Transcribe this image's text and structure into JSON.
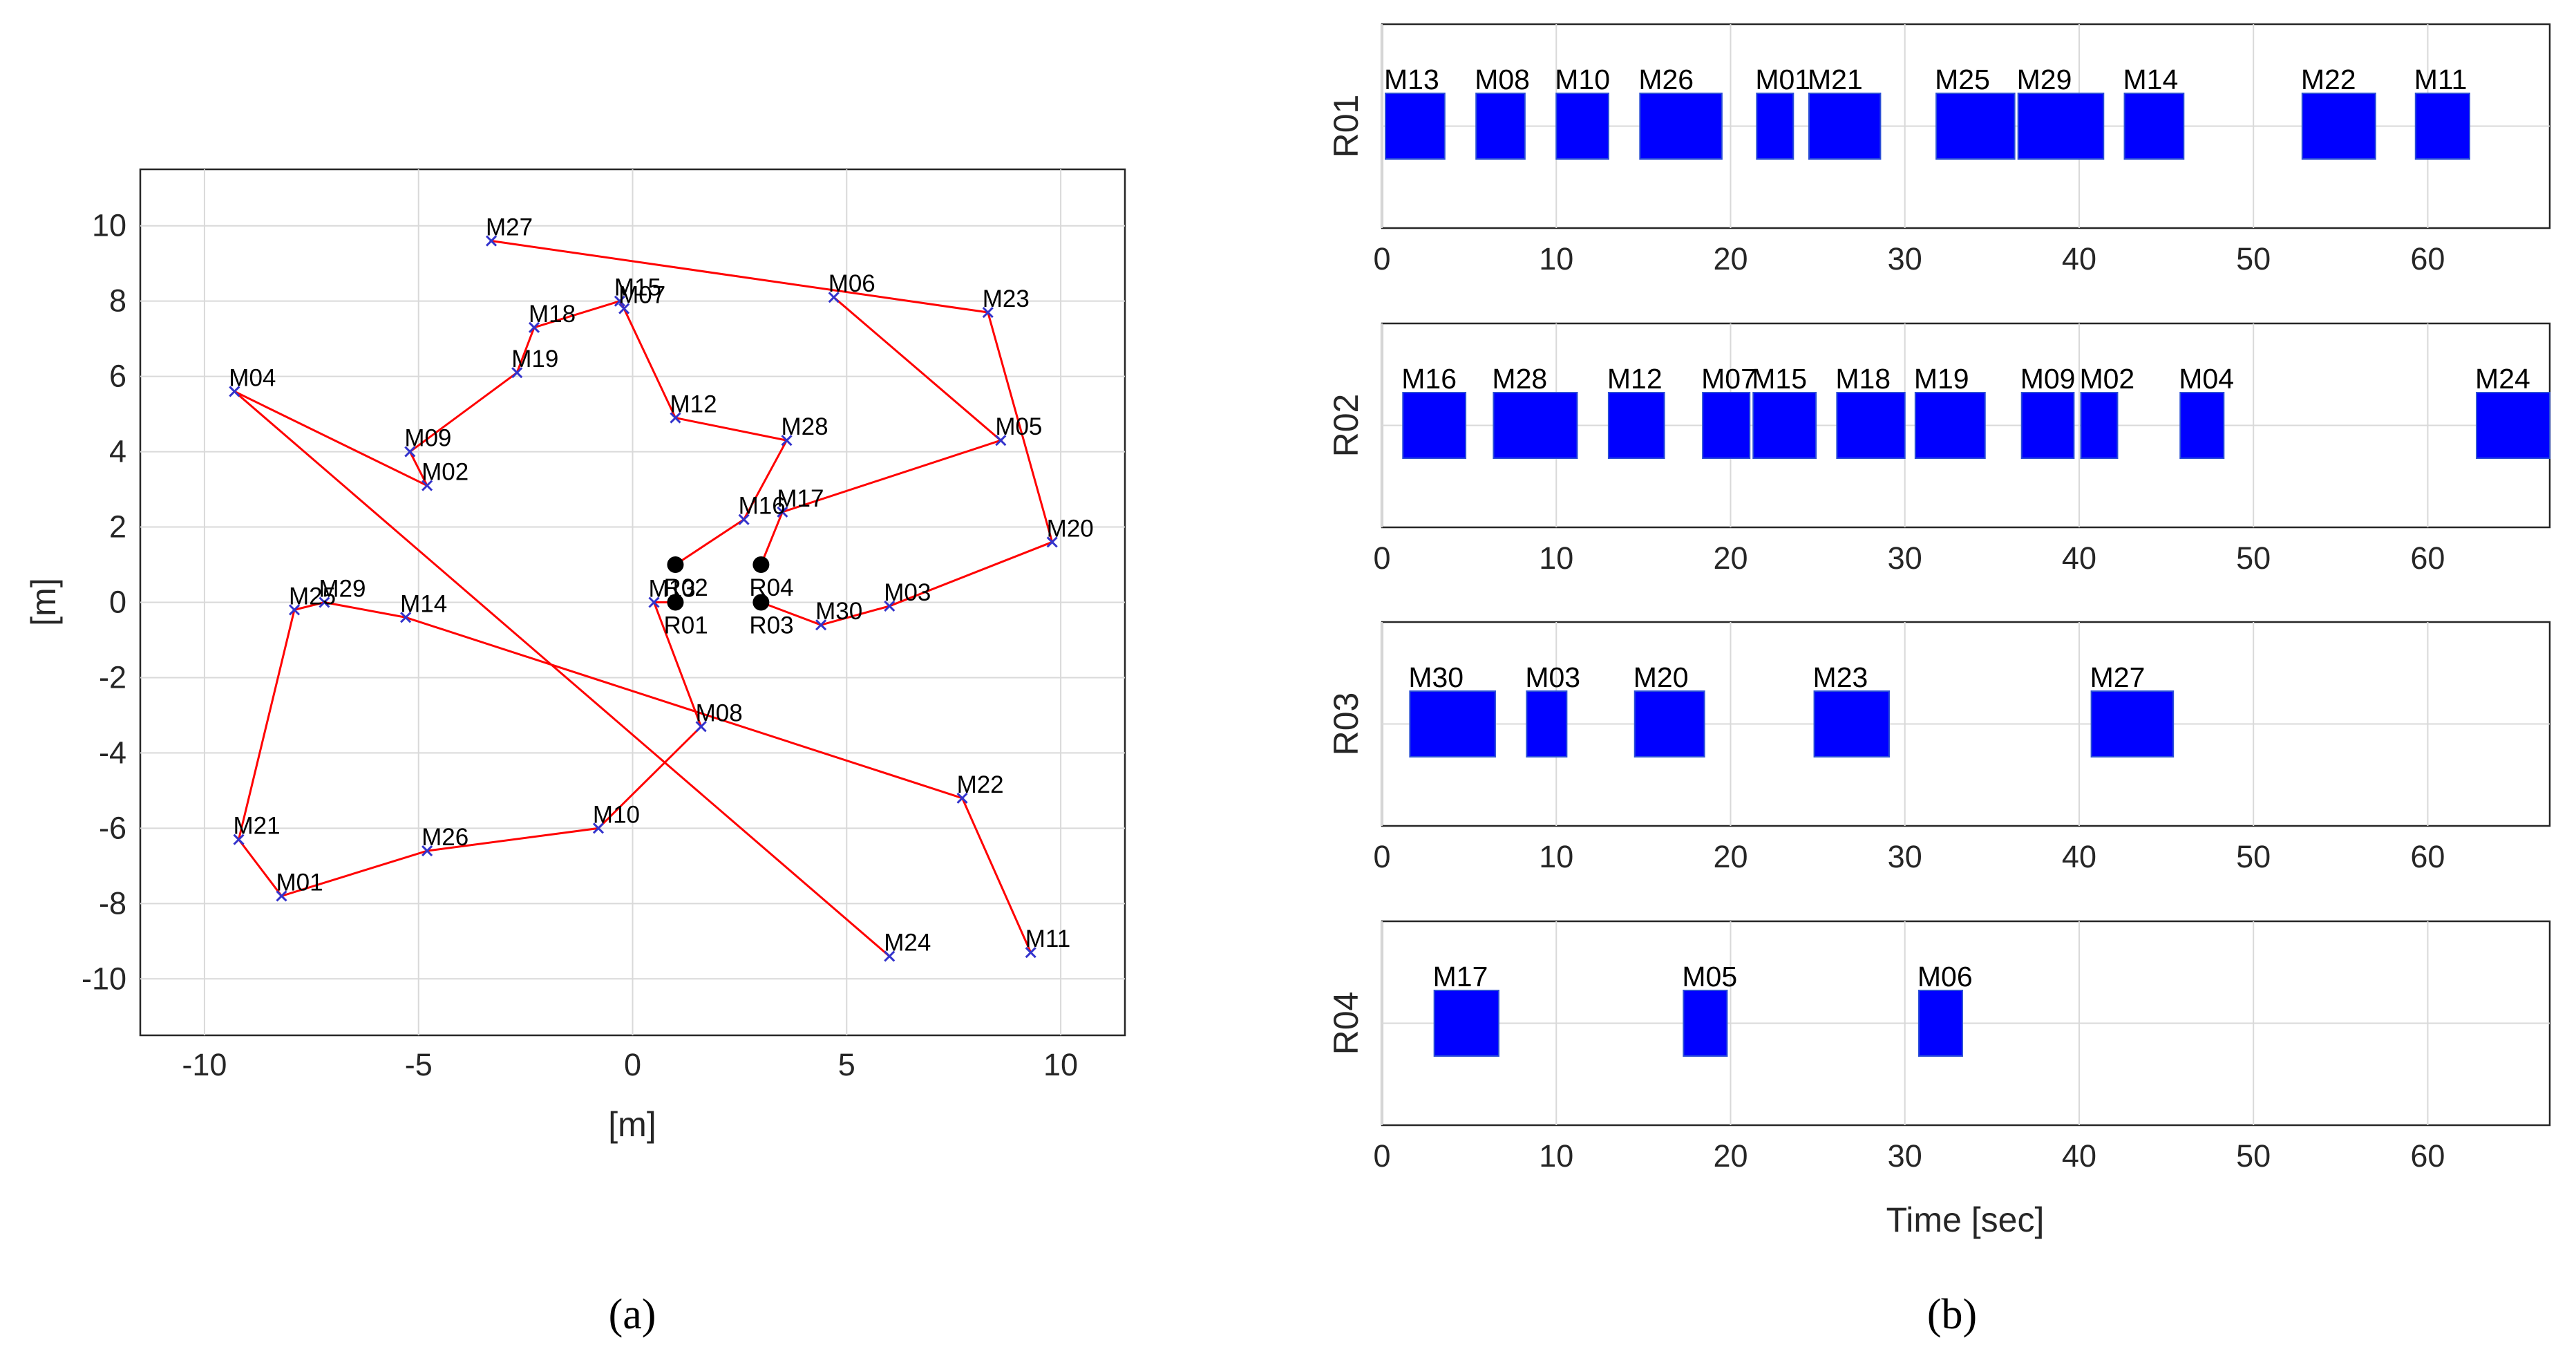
{
  "chart_data": [
    {
      "type": "scatter",
      "panel_label": "(a)",
      "xlabel": "[m]",
      "ylabel": "[m]",
      "xlim": [
        -11.5,
        11.5
      ],
      "ylim": [
        -11.5,
        11.5
      ],
      "xticks": [
        -10,
        -5,
        0,
        5,
        10
      ],
      "yticks": [
        10,
        8,
        6,
        4,
        2,
        0,
        -2,
        -4,
        -6,
        -8,
        -10
      ],
      "grid": true,
      "robots": [
        {
          "name": "R01",
          "x": 1.0,
          "y": 0.0
        },
        {
          "name": "R02",
          "x": 1.0,
          "y": 1.0
        },
        {
          "name": "R03",
          "x": 3.0,
          "y": 0.0
        },
        {
          "name": "R04",
          "x": 3.0,
          "y": 1.0
        }
      ],
      "targets": [
        {
          "name": "M01",
          "x": -8.2,
          "y": -7.8
        },
        {
          "name": "M02",
          "x": -4.8,
          "y": 3.1
        },
        {
          "name": "M03",
          "x": 6.0,
          "y": -0.1
        },
        {
          "name": "M04",
          "x": -9.3,
          "y": 5.6
        },
        {
          "name": "M05",
          "x": 8.6,
          "y": 4.3
        },
        {
          "name": "M06",
          "x": 4.7,
          "y": 8.1
        },
        {
          "name": "M07",
          "x": -0.2,
          "y": 7.8
        },
        {
          "name": "M08",
          "x": 1.6,
          "y": -3.3
        },
        {
          "name": "M09",
          "x": -5.2,
          "y": 4.0
        },
        {
          "name": "M10",
          "x": -0.8,
          "y": -6.0
        },
        {
          "name": "M11",
          "x": 9.3,
          "y": -9.3
        },
        {
          "name": "M12",
          "x": 1.0,
          "y": 4.9
        },
        {
          "name": "M13",
          "x": 0.5,
          "y": 0.0
        },
        {
          "name": "M14",
          "x": -5.3,
          "y": -0.4
        },
        {
          "name": "M15",
          "x": -0.3,
          "y": 8.0
        },
        {
          "name": "M16",
          "x": 2.6,
          "y": 2.2
        },
        {
          "name": "M17",
          "x": 3.5,
          "y": 2.4
        },
        {
          "name": "M18",
          "x": -2.3,
          "y": 7.3
        },
        {
          "name": "M19",
          "x": -2.7,
          "y": 6.1
        },
        {
          "name": "M20",
          "x": 9.8,
          "y": 1.6
        },
        {
          "name": "M21",
          "x": -9.2,
          "y": -6.3
        },
        {
          "name": "M22",
          "x": 7.7,
          "y": -5.2
        },
        {
          "name": "M23",
          "x": 8.3,
          "y": 7.7
        },
        {
          "name": "M24",
          "x": 6.0,
          "y": -9.4
        },
        {
          "name": "M25",
          "x": -7.9,
          "y": -0.2
        },
        {
          "name": "M26",
          "x": -4.8,
          "y": -6.6
        },
        {
          "name": "M27",
          "x": -3.3,
          "y": 9.6
        },
        {
          "name": "M28",
          "x": 3.6,
          "y": 4.3
        },
        {
          "name": "M29",
          "x": -7.2,
          "y": 0.0
        },
        {
          "name": "M30",
          "x": 4.4,
          "y": -0.6
        }
      ],
      "routes": [
        {
          "robot": "R01",
          "path": [
            "R01",
            "M13",
            "M08",
            "M10",
            "M26",
            "M01",
            "M21",
            "M25",
            "M29",
            "M14",
            "M22",
            "M11"
          ]
        },
        {
          "robot": "R02",
          "path": [
            "R02",
            "M16",
            "M28",
            "M12",
            "M07",
            "M15",
            "M18",
            "M19",
            "M09",
            "M02",
            "M04",
            "M24"
          ]
        },
        {
          "robot": "R03",
          "path": [
            "R03",
            "M30",
            "M03",
            "M20",
            "M23",
            "M27"
          ]
        },
        {
          "robot": "R04",
          "path": [
            "R04",
            "M17",
            "M05",
            "M06"
          ]
        }
      ]
    },
    {
      "type": "gantt",
      "panel_label": "(b)",
      "xlabel": "Time [sec]",
      "xlim": [
        0,
        67
      ],
      "xticks": [
        0,
        10,
        20,
        30,
        40,
        50,
        60
      ],
      "grid": true,
      "rows": [
        {
          "name": "R01",
          "tasks": [
            {
              "name": "M13",
              "start": 0.2,
              "end": 3.6
            },
            {
              "name": "M08",
              "start": 5.4,
              "end": 8.2
            },
            {
              "name": "M10",
              "start": 10.0,
              "end": 13.0
            },
            {
              "name": "M26",
              "start": 14.8,
              "end": 19.5
            },
            {
              "name": "M01",
              "start": 21.5,
              "end": 23.6
            },
            {
              "name": "M21",
              "start": 24.5,
              "end": 28.6
            },
            {
              "name": "M25",
              "start": 31.8,
              "end": 36.3
            },
            {
              "name": "M29",
              "start": 36.5,
              "end": 41.4
            },
            {
              "name": "M14",
              "start": 42.6,
              "end": 46.0
            },
            {
              "name": "M22",
              "start": 52.8,
              "end": 57.0
            },
            {
              "name": "M11",
              "start": 59.3,
              "end": 62.4
            }
          ]
        },
        {
          "name": "R02",
          "tasks": [
            {
              "name": "M16",
              "start": 1.2,
              "end": 4.8
            },
            {
              "name": "M28",
              "start": 6.4,
              "end": 11.2
            },
            {
              "name": "M12",
              "start": 13.0,
              "end": 16.2
            },
            {
              "name": "M07",
              "start": 18.4,
              "end": 21.1
            },
            {
              "name": "M15",
              "start": 21.3,
              "end": 24.9
            },
            {
              "name": "M18",
              "start": 26.1,
              "end": 30.0
            },
            {
              "name": "M19",
              "start": 30.6,
              "end": 34.6
            },
            {
              "name": "M09",
              "start": 36.7,
              "end": 39.7
            },
            {
              "name": "M02",
              "start": 40.1,
              "end": 42.2
            },
            {
              "name": "M04",
              "start": 45.8,
              "end": 48.3
            },
            {
              "name": "M24",
              "start": 62.8,
              "end": 67.0
            }
          ]
        },
        {
          "name": "R03",
          "tasks": [
            {
              "name": "M30",
              "start": 1.6,
              "end": 6.5
            },
            {
              "name": "M03",
              "start": 8.3,
              "end": 10.6
            },
            {
              "name": "M20",
              "start": 14.5,
              "end": 18.5
            },
            {
              "name": "M23",
              "start": 24.8,
              "end": 29.1
            },
            {
              "name": "M27",
              "start": 40.7,
              "end": 45.4
            }
          ]
        },
        {
          "name": "R04",
          "tasks": [
            {
              "name": "M17",
              "start": 3.0,
              "end": 6.7
            },
            {
              "name": "M05",
              "start": 17.3,
              "end": 19.8
            },
            {
              "name": "M06",
              "start": 30.8,
              "end": 33.3
            }
          ]
        }
      ]
    }
  ]
}
